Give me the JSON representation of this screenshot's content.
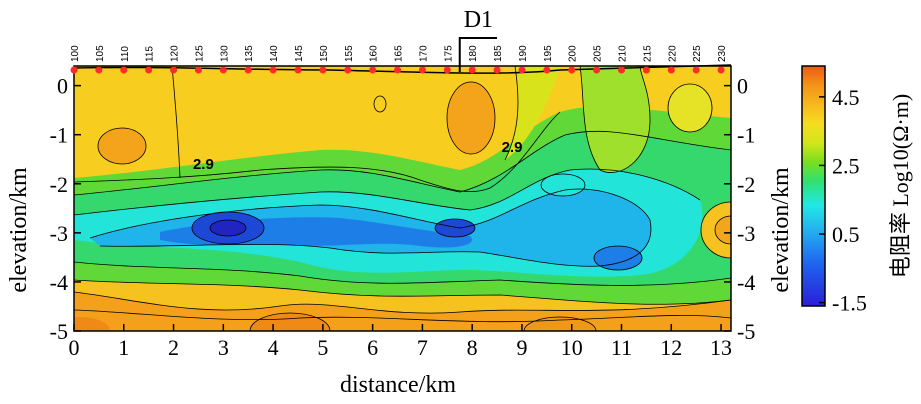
{
  "chart_data": {
    "type": "heatmap",
    "title": "",
    "xlabel": "distance/km",
    "ylabel_left": "elevation/km",
    "ylabel_right": "elevation/km",
    "xlim": [
      0,
      13.2
    ],
    "ylim": [
      -5,
      0.4
    ],
    "x_ticks": [
      "0",
      "1",
      "2",
      "3",
      "4",
      "5",
      "6",
      "7",
      "8",
      "9",
      "10",
      "11",
      "12",
      "13"
    ],
    "y_ticks": [
      "0",
      "-1",
      "-2",
      "-3",
      "-4",
      "-5"
    ],
    "stations": {
      "labels": [
        "100",
        "105",
        "110",
        "115",
        "120",
        "125",
        "130",
        "135",
        "140",
        "145",
        "150",
        "155",
        "160",
        "165",
        "170",
        "175",
        "180",
        "185",
        "190",
        "195",
        "200",
        "205",
        "210",
        "215",
        "220",
        "225",
        "230"
      ],
      "start_km": 0,
      "step_km": 0.5
    },
    "fault": {
      "label": "D1",
      "x_km": [
        7.75,
        8.5
      ]
    },
    "contour_labels": [
      {
        "text": "2.9",
        "x": 2.6,
        "y": -1.7
      },
      {
        "text": "2.9",
        "x": 8.8,
        "y": -1.35
      }
    ],
    "colorbar": {
      "title": "电阻率 Log10(Ω·m)",
      "ticks": [
        "4.5",
        "2.5",
        "0.5",
        "-1.5"
      ],
      "tick_values": [
        4.5,
        2.5,
        0.5,
        -1.5
      ],
      "range": [
        -1.6,
        5.4
      ]
    },
    "grid": false
  }
}
